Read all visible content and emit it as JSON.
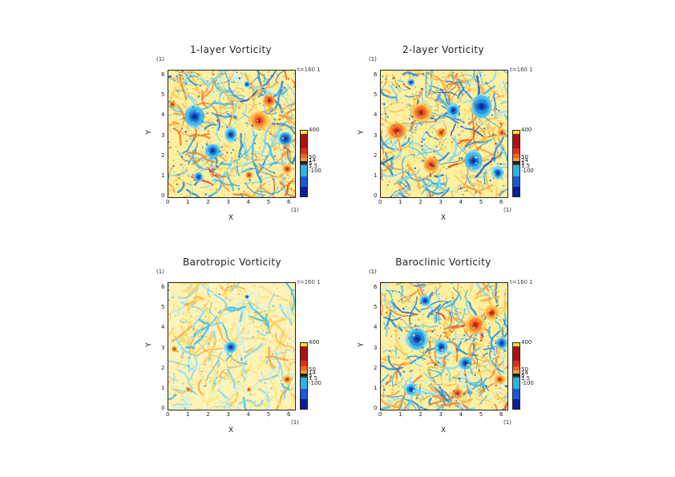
{
  "page": {
    "background": "#ffffff"
  },
  "colorbar": {
    "colors": [
      "#f5e52c",
      "#b01010",
      "#e03018",
      "#f06428",
      "#f29a3a",
      "#1c1c1c",
      "#4a3a2a",
      "#2fb2e0",
      "#1a5ad8",
      "#0c1c9a"
    ],
    "ticks": [
      {
        "label": "400",
        "value": 400
      },
      {
        "label": "50",
        "value": 50
      },
      {
        "label": "14",
        "value": 14
      },
      {
        "label": "5",
        "value": 5
      },
      {
        "label": "1.5",
        "value": 1.5
      },
      {
        "label": "-100",
        "value": -100
      }
    ]
  },
  "chart_data": [
    {
      "type": "heatmap",
      "title": "1-layer Vorticity",
      "xlabel": "X",
      "ylabel": "Y",
      "x_unit": "(1)",
      "y_unit": "(1)",
      "time_label": "t=160 1",
      "xlim": [
        0,
        6.28
      ],
      "ylim": [
        0,
        6.28
      ],
      "xticks": [
        "0",
        "1",
        "2",
        "3",
        "4",
        "5",
        "6"
      ],
      "yticks": [
        "0",
        "1",
        "2",
        "3",
        "4",
        "5",
        "6"
      ],
      "base_level": "mixed",
      "features": [
        {
          "x": 3.1,
          "y": 3.1,
          "kind": "neg",
          "r": 0.35
        },
        {
          "x": 3.9,
          "y": 5.6,
          "kind": "neg",
          "r": 0.15
        },
        {
          "x": 5.9,
          "y": 1.4,
          "kind": "pos",
          "r": 0.25
        },
        {
          "x": 5.0,
          "y": 4.8,
          "kind": "pos",
          "r": 0.35
        },
        {
          "x": 4.5,
          "y": 3.8,
          "kind": "pos",
          "r": 0.45
        },
        {
          "x": 1.3,
          "y": 4.0,
          "kind": "neg",
          "r": 0.55
        },
        {
          "x": 0.2,
          "y": 4.6,
          "kind": "pos",
          "r": 0.18
        },
        {
          "x": 4.0,
          "y": 1.1,
          "kind": "pos",
          "r": 0.2
        },
        {
          "x": 1.5,
          "y": 1.0,
          "kind": "neg",
          "r": 0.25
        },
        {
          "x": 5.8,
          "y": 2.9,
          "kind": "neg",
          "r": 0.4
        },
        {
          "x": 2.2,
          "y": 2.3,
          "kind": "neg",
          "r": 0.4
        }
      ]
    },
    {
      "type": "heatmap",
      "title": "2-layer Vorticity",
      "xlabel": "X",
      "ylabel": "Y",
      "x_unit": "(1)",
      "y_unit": "(1)",
      "time_label": "t=160 1",
      "xlim": [
        0,
        6.28
      ],
      "ylim": [
        0,
        6.28
      ],
      "xticks": [
        "0",
        "1",
        "2",
        "3",
        "4",
        "5",
        "6"
      ],
      "yticks": [
        "0",
        "1",
        "2",
        "3",
        "4",
        "5",
        "6"
      ],
      "base_level": "mixed",
      "features": [
        {
          "x": 2.0,
          "y": 4.2,
          "kind": "pos",
          "r": 0.5
        },
        {
          "x": 0.8,
          "y": 3.3,
          "kind": "pos",
          "r": 0.5
        },
        {
          "x": 3.0,
          "y": 3.2,
          "kind": "pos",
          "r": 0.25
        },
        {
          "x": 2.5,
          "y": 1.6,
          "kind": "pos",
          "r": 0.4
        },
        {
          "x": 5.0,
          "y": 4.5,
          "kind": "neg",
          "r": 0.6
        },
        {
          "x": 3.6,
          "y": 4.3,
          "kind": "neg",
          "r": 0.35
        },
        {
          "x": 4.6,
          "y": 1.8,
          "kind": "neg",
          "r": 0.5
        },
        {
          "x": 6.0,
          "y": 3.2,
          "kind": "pos",
          "r": 0.2
        },
        {
          "x": 1.5,
          "y": 5.7,
          "kind": "neg",
          "r": 0.2
        },
        {
          "x": 5.8,
          "y": 1.2,
          "kind": "neg",
          "r": 0.3
        }
      ]
    },
    {
      "type": "heatmap",
      "title": "Barotropic Vorticity",
      "xlabel": "X",
      "ylabel": "Y",
      "x_unit": "(1)",
      "y_unit": "(1)",
      "time_label": "t=160 1",
      "xlim": [
        0,
        6.28
      ],
      "ylim": [
        0,
        6.28
      ],
      "xticks": [
        "0",
        "1",
        "2",
        "3",
        "4",
        "5",
        "6"
      ],
      "yticks": [
        "0",
        "1",
        "2",
        "3",
        "4",
        "5",
        "6"
      ],
      "base_level": "calm",
      "features": [
        {
          "x": 3.1,
          "y": 3.1,
          "kind": "neg",
          "r": 0.3
        },
        {
          "x": 5.9,
          "y": 1.5,
          "kind": "pos",
          "r": 0.22
        },
        {
          "x": 3.9,
          "y": 5.6,
          "kind": "neg",
          "r": 0.12
        },
        {
          "x": 1.0,
          "y": 1.0,
          "kind": "pos",
          "r": 0.12
        },
        {
          "x": 4.0,
          "y": 1.0,
          "kind": "pos",
          "r": 0.12
        },
        {
          "x": 0.3,
          "y": 3.0,
          "kind": "pos",
          "r": 0.15
        }
      ]
    },
    {
      "type": "heatmap",
      "title": "Baroclinic Vorticity",
      "xlabel": "X",
      "ylabel": "Y",
      "x_unit": "(1)",
      "y_unit": "(1)",
      "time_label": "t=160 1",
      "xlim": [
        0,
        6.28
      ],
      "ylim": [
        0,
        6.28
      ],
      "xticks": [
        "0",
        "1",
        "2",
        "3",
        "4",
        "5",
        "6"
      ],
      "yticks": [
        "0",
        "1",
        "2",
        "3",
        "4",
        "5",
        "6"
      ],
      "base_level": "mixed",
      "features": [
        {
          "x": 3.0,
          "y": 3.1,
          "kind": "neg",
          "r": 0.35
        },
        {
          "x": 5.5,
          "y": 4.8,
          "kind": "pos",
          "r": 0.35
        },
        {
          "x": 4.7,
          "y": 4.2,
          "kind": "pos",
          "r": 0.5
        },
        {
          "x": 5.9,
          "y": 1.5,
          "kind": "pos",
          "r": 0.25
        },
        {
          "x": 3.8,
          "y": 0.8,
          "kind": "pos",
          "r": 0.3
        },
        {
          "x": 1.8,
          "y": 3.5,
          "kind": "neg",
          "r": 0.6
        },
        {
          "x": 1.5,
          "y": 1.0,
          "kind": "neg",
          "r": 0.3
        },
        {
          "x": 4.2,
          "y": 2.3,
          "kind": "neg",
          "r": 0.35
        },
        {
          "x": 6.0,
          "y": 3.3,
          "kind": "neg",
          "r": 0.3
        },
        {
          "x": 2.2,
          "y": 5.4,
          "kind": "neg",
          "r": 0.3
        }
      ]
    }
  ]
}
